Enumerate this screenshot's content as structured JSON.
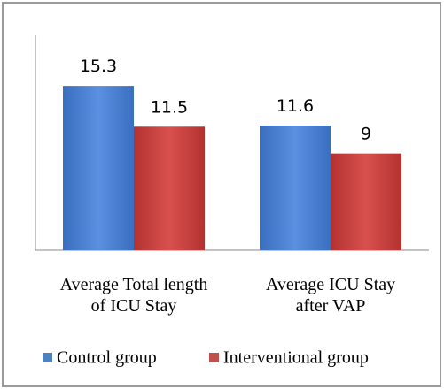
{
  "chart_data": {
    "type": "bar",
    "categories": [
      "Average Total length of ICU Stay",
      "Average ICU Stay after VAP"
    ],
    "series": [
      {
        "name": "Control group",
        "color": "#4f81bd",
        "values": [
          15.3,
          11.6
        ]
      },
      {
        "name": "Interventional group",
        "color": "#c0504d",
        "values": [
          11.5,
          9
        ]
      }
    ],
    "ylim": [
      0,
      20
    ],
    "legend": "bottom"
  }
}
